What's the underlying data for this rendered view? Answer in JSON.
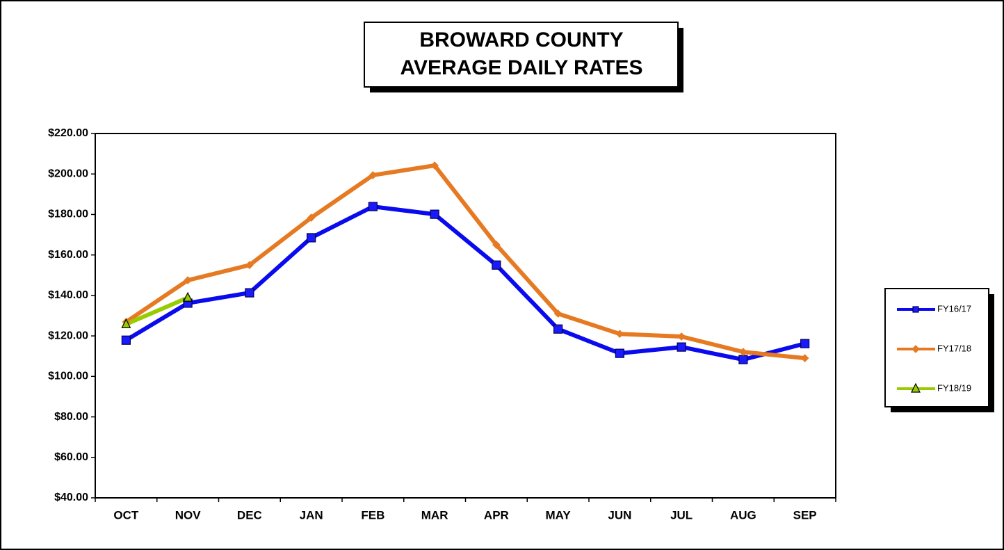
{
  "chart_data": {
    "type": "line",
    "title": [
      "BROWARD COUNTY",
      "AVERAGE DAILY RATES"
    ],
    "categories": [
      "OCT",
      "NOV",
      "DEC",
      "JAN",
      "FEB",
      "MAR",
      "APR",
      "MAY",
      "JUN",
      "JUL",
      "AUG",
      "SEP"
    ],
    "series": [
      {
        "name": "FY16/17",
        "color": "#0a0aee",
        "marker": "square",
        "values": [
          117.9,
          136.2,
          141.3,
          168.5,
          183.9,
          180.1,
          155.0,
          123.4,
          111.4,
          114.5,
          108.3,
          116.2
        ]
      },
      {
        "name": "FY17/18",
        "color": "#e67a22",
        "marker": "diamond",
        "values": [
          126.9,
          147.5,
          155.0,
          178.4,
          199.4,
          204.2,
          165.0,
          131.0,
          121.0,
          119.7,
          112.1,
          109.0
        ]
      },
      {
        "name": "FY18/19",
        "color": "#99cc00",
        "marker": "triangle",
        "values": [
          125.8,
          138.9,
          null,
          null,
          null,
          null,
          null,
          null,
          null,
          null,
          null,
          null
        ]
      }
    ],
    "ylim": [
      40,
      220
    ],
    "yticks": [
      {
        "value": 40,
        "label": "$40.00"
      },
      {
        "value": 60,
        "label": "$60.00"
      },
      {
        "value": 80,
        "label": "$80.00"
      },
      {
        "value": 100,
        "label": "$100.00"
      },
      {
        "value": 120,
        "label": "$120.00"
      },
      {
        "value": 140,
        "label": "$140.00"
      },
      {
        "value": 160,
        "label": "$160.00"
      },
      {
        "value": 180,
        "label": "$180.00"
      },
      {
        "value": 200,
        "label": "$200.00"
      },
      {
        "value": 220,
        "label": "$220.00"
      }
    ],
    "grid": false,
    "legend": "right"
  }
}
